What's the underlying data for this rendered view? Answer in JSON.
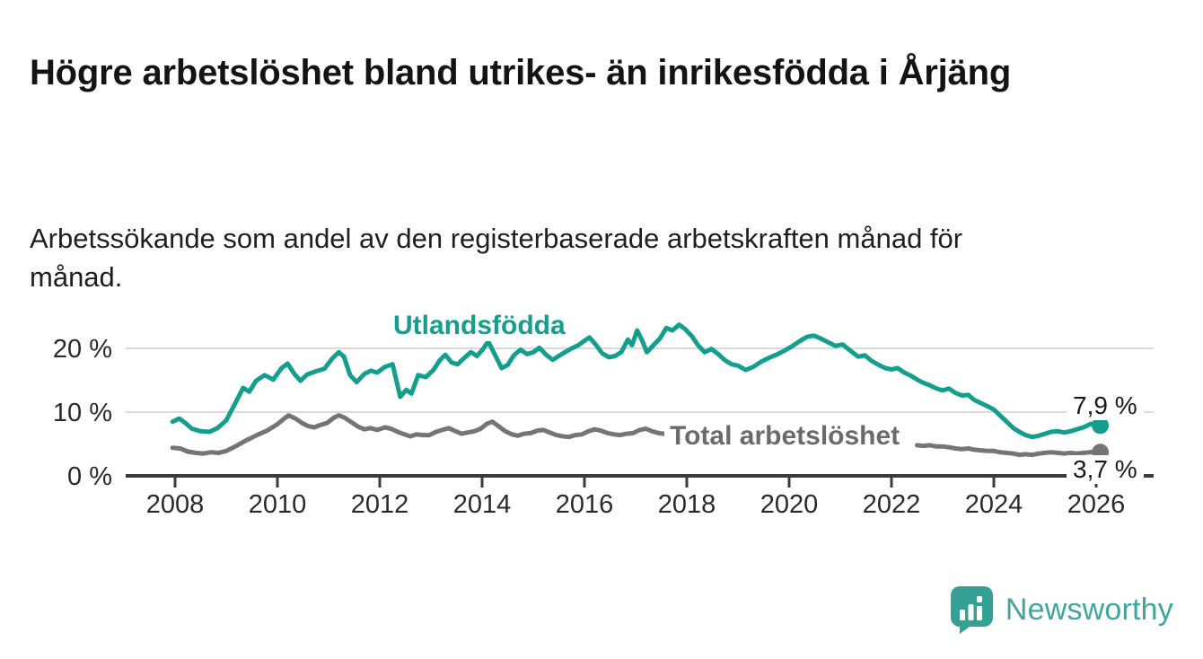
{
  "page": {
    "title": "Högre arbetslöshet bland utrikes- än inrikesfödda i Årjäng",
    "subtitle": "Arbetssökande som andel av den registerbaserade arbetskraften månad för månad.",
    "background_color": "#ffffff"
  },
  "branding": {
    "logo_text": "Newsworthy",
    "logo_color": "#3ea79d",
    "logo_icon": "speech-bubble-bar-chart"
  },
  "chart_data": {
    "type": "line",
    "unit": "%",
    "grid": true,
    "legend_position": "inline-labels",
    "x_axis": {
      "range_years": [
        2007.05,
        2027.1
      ],
      "ticks": [
        {
          "year": 2008,
          "label": "2008"
        },
        {
          "year": 2010,
          "label": "2010"
        },
        {
          "year": 2012,
          "label": "2012"
        },
        {
          "year": 2014,
          "label": "2014"
        },
        {
          "year": 2016,
          "label": "2016"
        },
        {
          "year": 2018,
          "label": "2018"
        },
        {
          "year": 2020,
          "label": "2020"
        },
        {
          "year": 2022,
          "label": "2022"
        },
        {
          "year": 2024,
          "label": "2024"
        },
        {
          "year": 2026,
          "label": "2026"
        }
      ]
    },
    "y_axis": {
      "range": [
        0,
        24
      ],
      "ticks": [
        {
          "value": 20,
          "label": "20 %"
        },
        {
          "value": 10,
          "label": "10 %"
        },
        {
          "value": 0,
          "label": "0 %"
        }
      ]
    },
    "series": [
      {
        "name": "Utlandsfödda",
        "color": "#149e8d",
        "end_value": 7.9,
        "end_value_label": "7,9 %",
        "segments": [
          [
            [
              2007.95,
              8.5
            ],
            [
              2008.08,
              9.0
            ],
            [
              2008.2,
              8.3
            ],
            [
              2008.33,
              7.4
            ],
            [
              2008.5,
              7.0
            ],
            [
              2008.67,
              6.9
            ],
            [
              2008.83,
              7.5
            ],
            [
              2009.0,
              8.7
            ],
            [
              2009.17,
              11.3
            ],
            [
              2009.33,
              13.8
            ],
            [
              2009.45,
              13.2
            ],
            [
              2009.58,
              14.9
            ],
            [
              2009.75,
              15.8
            ],
            [
              2009.92,
              15.1
            ],
            [
              2010.08,
              16.9
            ],
            [
              2010.2,
              17.6
            ],
            [
              2010.33,
              16.0
            ],
            [
              2010.45,
              14.9
            ],
            [
              2010.58,
              15.9
            ],
            [
              2010.75,
              16.4
            ],
            [
              2010.92,
              16.8
            ],
            [
              2011.08,
              18.5
            ],
            [
              2011.2,
              19.4
            ],
            [
              2011.3,
              18.7
            ],
            [
              2011.42,
              15.8
            ],
            [
              2011.55,
              14.7
            ],
            [
              2011.7,
              16.0
            ],
            [
              2011.83,
              16.5
            ],
            [
              2011.95,
              16.2
            ],
            [
              2012.1,
              17.1
            ],
            [
              2012.25,
              17.5
            ],
            [
              2012.4,
              12.4
            ],
            [
              2012.52,
              13.5
            ],
            [
              2012.62,
              12.9
            ],
            [
              2012.75,
              15.8
            ],
            [
              2012.9,
              15.5
            ],
            [
              2013.05,
              16.6
            ],
            [
              2013.17,
              18.1
            ],
            [
              2013.28,
              19.0
            ],
            [
              2013.4,
              17.8
            ],
            [
              2013.52,
              17.5
            ],
            [
              2013.65,
              18.5
            ],
            [
              2013.78,
              19.4
            ],
            [
              2013.9,
              18.8
            ],
            [
              2014.02,
              19.9
            ],
            [
              2014.12,
              21.1
            ],
            [
              2014.25,
              19.0
            ],
            [
              2014.38,
              16.9
            ],
            [
              2014.5,
              17.4
            ],
            [
              2014.62,
              18.9
            ],
            [
              2014.75,
              19.8
            ],
            [
              2014.88,
              19.1
            ],
            [
              2015.0,
              19.4
            ],
            [
              2015.12,
              20.1
            ],
            [
              2015.25,
              19.0
            ],
            [
              2015.38,
              18.2
            ],
            [
              2015.5,
              18.8
            ],
            [
              2015.62,
              19.4
            ],
            [
              2015.75,
              20.0
            ],
            [
              2015.88,
              20.5
            ],
            [
              2016.0,
              21.2
            ],
            [
              2016.1,
              21.7
            ],
            [
              2016.22,
              20.6
            ],
            [
              2016.35,
              19.2
            ],
            [
              2016.48,
              18.6
            ],
            [
              2016.6,
              18.8
            ],
            [
              2016.72,
              19.4
            ],
            [
              2016.85,
              21.4
            ],
            [
              2016.93,
              20.5
            ],
            [
              2017.03,
              22.8
            ],
            [
              2017.13,
              21.2
            ],
            [
              2017.22,
              19.4
            ],
            [
              2017.35,
              20.5
            ],
            [
              2017.48,
              21.6
            ],
            [
              2017.6,
              23.2
            ],
            [
              2017.72,
              22.8
            ],
            [
              2017.85,
              23.7
            ],
            [
              2017.97,
              23.0
            ],
            [
              2018.1,
              21.9
            ],
            [
              2018.22,
              20.5
            ],
            [
              2018.35,
              19.4
            ],
            [
              2018.48,
              19.9
            ],
            [
              2018.6,
              19.2
            ],
            [
              2018.75,
              18.1
            ],
            [
              2018.88,
              17.5
            ],
            [
              2019.0,
              17.3
            ],
            [
              2019.15,
              16.6
            ],
            [
              2019.3,
              17.1
            ],
            [
              2019.45,
              17.9
            ],
            [
              2019.6,
              18.5
            ],
            [
              2019.75,
              19.0
            ],
            [
              2019.9,
              19.6
            ],
            [
              2020.05,
              20.3
            ],
            [
              2020.2,
              21.1
            ],
            [
              2020.35,
              21.8
            ],
            [
              2020.48,
              22.0
            ],
            [
              2020.6,
              21.6
            ],
            [
              2020.75,
              21.0
            ],
            [
              2020.9,
              20.4
            ],
            [
              2021.05,
              20.6
            ],
            [
              2021.2,
              19.6
            ],
            [
              2021.35,
              18.7
            ],
            [
              2021.48,
              18.9
            ],
            [
              2021.6,
              18.1
            ],
            [
              2021.75,
              17.4
            ],
            [
              2021.88,
              16.9
            ],
            [
              2022.0,
              16.7
            ],
            [
              2022.12,
              16.9
            ],
            [
              2022.25,
              16.2
            ],
            [
              2022.38,
              15.7
            ],
            [
              2022.5,
              15.1
            ],
            [
              2022.62,
              14.6
            ],
            [
              2022.75,
              14.2
            ],
            [
              2022.88,
              13.7
            ],
            [
              2023.0,
              13.4
            ],
            [
              2023.12,
              13.7
            ],
            [
              2023.25,
              13.0
            ],
            [
              2023.38,
              12.6
            ],
            [
              2023.5,
              12.7
            ],
            [
              2023.62,
              11.9
            ],
            [
              2023.75,
              11.4
            ],
            [
              2023.88,
              10.9
            ],
            [
              2024.0,
              10.4
            ],
            [
              2024.12,
              9.5
            ],
            [
              2024.25,
              8.5
            ],
            [
              2024.38,
              7.5
            ],
            [
              2024.5,
              6.9
            ],
            [
              2024.62,
              6.4
            ],
            [
              2024.75,
              6.1
            ],
            [
              2024.88,
              6.3
            ],
            [
              2025.0,
              6.6
            ],
            [
              2025.12,
              6.9
            ],
            [
              2025.25,
              7.0
            ],
            [
              2025.38,
              6.8
            ],
            [
              2025.5,
              7.0
            ],
            [
              2025.62,
              7.3
            ],
            [
              2025.75,
              7.6
            ],
            [
              2025.88,
              8.1
            ],
            [
              2026.0,
              8.3
            ],
            [
              2026.08,
              7.9
            ]
          ]
        ]
      },
      {
        "name": "Total arbetslöshet",
        "color": "#757575",
        "label_color": "#6b6b6b",
        "end_value": 3.7,
        "end_value_label": "3,7 %",
        "segments": [
          [
            [
              2007.95,
              4.4
            ],
            [
              2008.1,
              4.3
            ],
            [
              2008.25,
              3.8
            ],
            [
              2008.4,
              3.6
            ],
            [
              2008.55,
              3.5
            ],
            [
              2008.7,
              3.7
            ],
            [
              2008.85,
              3.6
            ],
            [
              2009.0,
              3.9
            ],
            [
              2009.2,
              4.7
            ],
            [
              2009.4,
              5.6
            ],
            [
              2009.6,
              6.4
            ],
            [
              2009.8,
              7.1
            ],
            [
              2010.0,
              8.1
            ],
            [
              2010.12,
              8.9
            ],
            [
              2010.22,
              9.5
            ],
            [
              2010.35,
              9.0
            ],
            [
              2010.48,
              8.3
            ],
            [
              2010.6,
              7.8
            ],
            [
              2010.72,
              7.6
            ],
            [
              2010.85,
              8.0
            ],
            [
              2010.97,
              8.3
            ],
            [
              2011.1,
              9.1
            ],
            [
              2011.2,
              9.5
            ],
            [
              2011.32,
              9.1
            ],
            [
              2011.45,
              8.4
            ],
            [
              2011.58,
              7.7
            ],
            [
              2011.7,
              7.3
            ],
            [
              2011.82,
              7.5
            ],
            [
              2011.95,
              7.2
            ],
            [
              2012.1,
              7.6
            ],
            [
              2012.22,
              7.4
            ],
            [
              2012.35,
              6.9
            ],
            [
              2012.48,
              6.5
            ],
            [
              2012.6,
              6.2
            ],
            [
              2012.72,
              6.5
            ],
            [
              2012.85,
              6.4
            ],
            [
              2012.97,
              6.4
            ],
            [
              2013.1,
              6.9
            ],
            [
              2013.22,
              7.2
            ],
            [
              2013.35,
              7.5
            ],
            [
              2013.48,
              7.0
            ],
            [
              2013.6,
              6.6
            ],
            [
              2013.72,
              6.8
            ],
            [
              2013.85,
              7.0
            ],
            [
              2013.97,
              7.4
            ],
            [
              2014.1,
              8.2
            ],
            [
              2014.2,
              8.5
            ],
            [
              2014.32,
              7.8
            ],
            [
              2014.45,
              7.0
            ],
            [
              2014.58,
              6.5
            ],
            [
              2014.7,
              6.3
            ],
            [
              2014.82,
              6.6
            ],
            [
              2014.95,
              6.7
            ],
            [
              2015.08,
              7.1
            ],
            [
              2015.2,
              7.2
            ],
            [
              2015.32,
              6.8
            ],
            [
              2015.45,
              6.4
            ],
            [
              2015.58,
              6.2
            ],
            [
              2015.7,
              6.1
            ],
            [
              2015.82,
              6.4
            ],
            [
              2015.95,
              6.5
            ],
            [
              2016.08,
              7.0
            ],
            [
              2016.2,
              7.3
            ],
            [
              2016.32,
              7.1
            ],
            [
              2016.45,
              6.7
            ],
            [
              2016.58,
              6.5
            ],
            [
              2016.7,
              6.4
            ],
            [
              2016.82,
              6.6
            ],
            [
              2016.95,
              6.7
            ],
            [
              2017.08,
              7.2
            ],
            [
              2017.2,
              7.4
            ],
            [
              2017.32,
              7.0
            ],
            [
              2017.45,
              6.7
            ],
            [
              2017.55,
              6.6
            ],
            [
              2017.65,
              6.8
            ]
          ],
          [
            [
              2022.5,
              4.8
            ],
            [
              2022.62,
              4.7
            ],
            [
              2022.75,
              4.8
            ],
            [
              2022.88,
              4.6
            ],
            [
              2023.0,
              4.6
            ],
            [
              2023.12,
              4.5
            ],
            [
              2023.25,
              4.3
            ],
            [
              2023.38,
              4.2
            ],
            [
              2023.5,
              4.3
            ],
            [
              2023.62,
              4.1
            ],
            [
              2023.75,
              4.0
            ],
            [
              2023.88,
              3.9
            ],
            [
              2024.0,
              3.9
            ],
            [
              2024.12,
              3.7
            ],
            [
              2024.25,
              3.6
            ],
            [
              2024.38,
              3.5
            ],
            [
              2024.5,
              3.3
            ],
            [
              2024.62,
              3.4
            ],
            [
              2024.75,
              3.3
            ],
            [
              2024.88,
              3.5
            ],
            [
              2025.0,
              3.6
            ],
            [
              2025.12,
              3.7
            ],
            [
              2025.25,
              3.6
            ],
            [
              2025.38,
              3.5
            ],
            [
              2025.5,
              3.6
            ],
            [
              2025.62,
              3.5
            ],
            [
              2025.75,
              3.6
            ],
            [
              2025.88,
              3.7
            ],
            [
              2026.0,
              3.9
            ],
            [
              2026.08,
              3.7
            ]
          ]
        ]
      }
    ]
  }
}
